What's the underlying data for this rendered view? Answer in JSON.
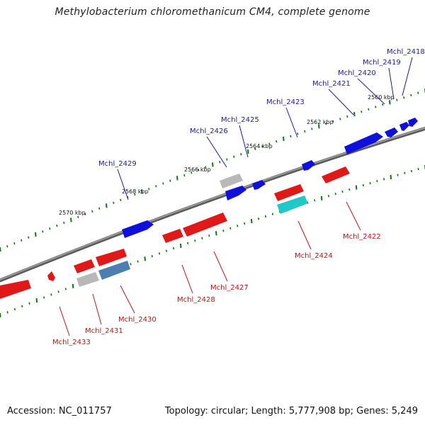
{
  "title": "Methylobacterium chloromethanicum CM4, complete genome",
  "accession_label": "Accession: NC_011757",
  "topology_label": "Topology: circular; Length: 5,777,908 bp; Genes: 5,249",
  "colors": {
    "forward_gene": "#1010dd",
    "reverse_gene": "#e01818",
    "backbone": "#808080",
    "tick": "#0a7a0a",
    "forward_label": "#1a1aa6",
    "reverse_label": "#cc1111",
    "gray_gene": "#b8b8b8",
    "cyan_gene": "#20c8c8",
    "steel_gene": "#4a7fb0"
  },
  "scale_labels": [
    "2560 kbp",
    "2562 kbp",
    "2564 kbp",
    "2566 kbp",
    "2568 kbp",
    "2570 kbp"
  ],
  "forward_gene_labels": [
    "Mchl_2418",
    "Mchl_2419",
    "Mchl_2420",
    "Mchl_2421",
    "Mchl_2423",
    "Mchl_2425",
    "Mchl_2426",
    "Mchl_2429"
  ],
  "reverse_gene_labels": [
    "Mchl_2422",
    "Mchl_2424",
    "Mchl_2427",
    "Mchl_2428",
    "Mchl_2430",
    "Mchl_2431",
    "Mchl_2433"
  ]
}
